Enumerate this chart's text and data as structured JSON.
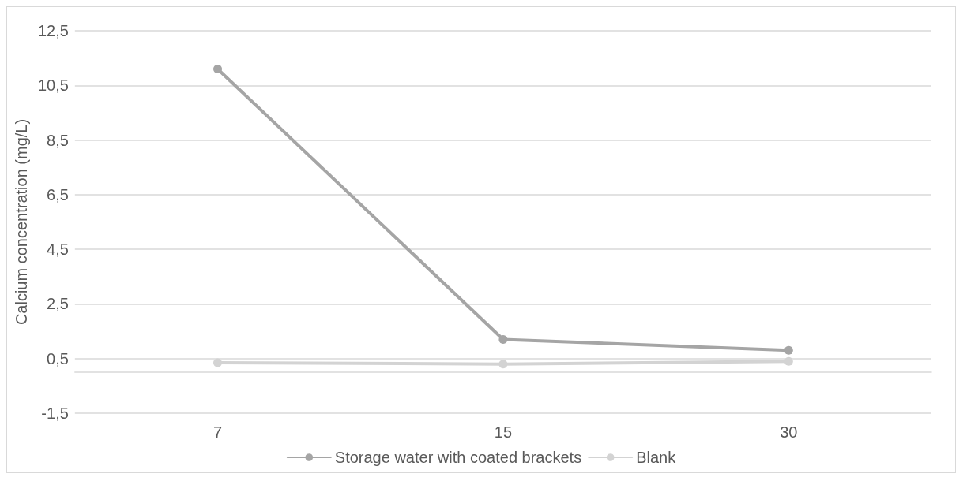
{
  "chart_data": {
    "type": "line",
    "ylabel": "Calcium concentration (mg/L)",
    "categories": [
      "7",
      "15",
      "30"
    ],
    "series": [
      {
        "name": "Storage water with coated brackets",
        "color": "#a5a5a5",
        "values": [
          11.1,
          1.2,
          0.8
        ]
      },
      {
        "name": "Blank",
        "color": "#d3d3d3",
        "values": [
          0.35,
          0.3,
          0.4
        ]
      }
    ],
    "ylim": [
      -1.5,
      12.5
    ],
    "yticks": [
      {
        "value": -1.5,
        "label": "-1,5"
      },
      {
        "value": 0.5,
        "label": "0,5"
      },
      {
        "value": 2.5,
        "label": "2,5"
      },
      {
        "value": 4.5,
        "label": "4,5"
      },
      {
        "value": 6.5,
        "label": "6,5"
      },
      {
        "value": 8.5,
        "label": "8,5"
      },
      {
        "value": 10.5,
        "label": "10,5"
      },
      {
        "value": 12.5,
        "label": "12,5"
      }
    ],
    "grid": "y",
    "legend": "bottom",
    "marker": "circle",
    "line_style": "solid"
  }
}
